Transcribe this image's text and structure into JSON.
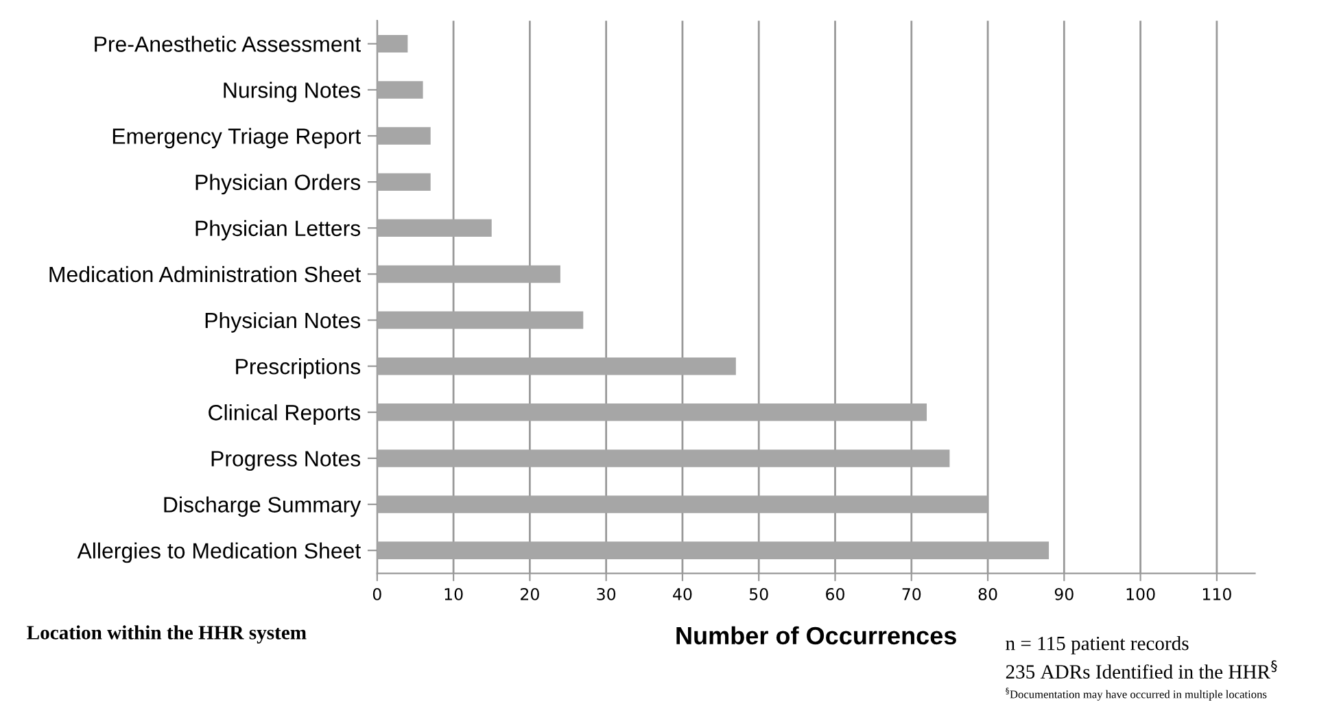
{
  "chart_data": {
    "type": "bar",
    "orientation": "horizontal",
    "categories": [
      "Pre-Anesthetic Assessment",
      "Nursing Notes",
      "Emergency Triage Report",
      "Physician Orders",
      "Physician Letters",
      "Medication Administration Sheet",
      "Physician Notes",
      "Prescriptions",
      "Clinical Reports",
      "Progress Notes",
      "Discharge Summary",
      "Allergies to Medication Sheet"
    ],
    "values": [
      4,
      6,
      7,
      7,
      15,
      24,
      27,
      47,
      72,
      75,
      80,
      88
    ],
    "color": "#a6a6a6",
    "xlim": [
      0,
      115
    ],
    "xticks": [
      0,
      10,
      20,
      30,
      40,
      50,
      60,
      70,
      80,
      90,
      100,
      110
    ],
    "grid": "x",
    "xlabel": "Number of Occurrences",
    "ylabel": "Location within the HHR system",
    "annotations": [
      "n = 115 patient records",
      "235 ADRs Identified in the HHR$^{§}$",
      "$^{§}$Documentation may have occurred in multiple locations"
    ]
  }
}
